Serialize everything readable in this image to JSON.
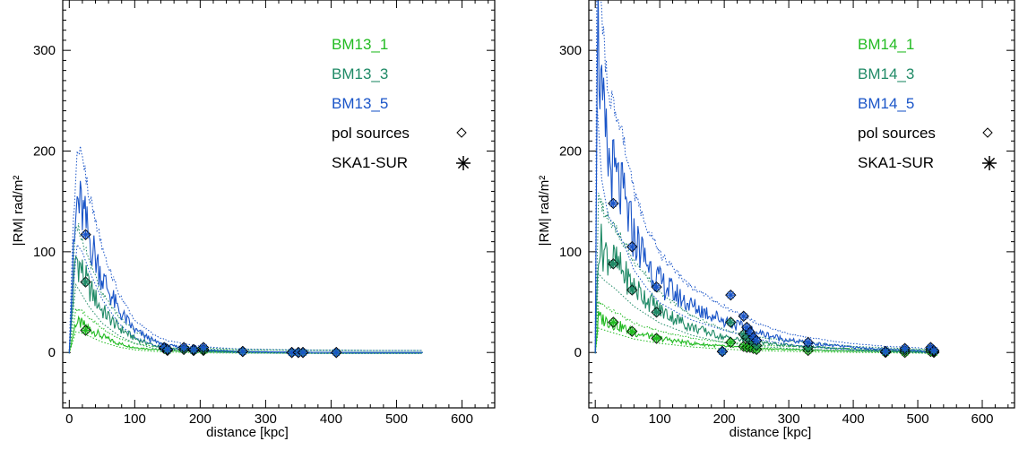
{
  "chart_data": [
    {
      "type": "line",
      "xlabel": "distance [kpc]",
      "ylabel": "|RM| rad/m²",
      "xlim": [
        -10,
        650
      ],
      "ylim": [
        -55,
        350
      ],
      "xticks": [
        "0",
        "100",
        "200",
        "300",
        "400",
        "500",
        "600"
      ],
      "yticks": [
        "0",
        "100",
        "200",
        "300"
      ],
      "legend": [
        "BM13_1",
        "BM13_3",
        "BM13_5",
        "pol sources",
        "SKA1-SUR"
      ],
      "legend_position": "top-right",
      "grid": false,
      "series": [
        {
          "name": "BM13_1",
          "color": "#22bb22",
          "x": [
            0,
            10,
            20,
            30,
            50,
            75,
            100,
            130,
            150,
            200,
            260,
            350,
            450,
            540
          ],
          "y": [
            0,
            30,
            28,
            24,
            16,
            9,
            5,
            3,
            2,
            1,
            0.5,
            0.2,
            0,
            0
          ]
        },
        {
          "name": "BM13_3",
          "color": "#1f8a66",
          "x": [
            0,
            10,
            20,
            30,
            50,
            75,
            100,
            130,
            150,
            200,
            260,
            350,
            450,
            540
          ],
          "y": [
            0,
            95,
            80,
            65,
            42,
            25,
            14,
            7,
            4,
            2,
            1,
            0.3,
            0,
            0
          ]
        },
        {
          "name": "BM13_5",
          "color": "#1a55c8",
          "x": [
            0,
            5,
            12,
            20,
            30,
            50,
            75,
            100,
            130,
            150,
            200,
            260,
            350,
            450,
            540
          ],
          "y": [
            0,
            80,
            150,
            140,
            115,
            75,
            42,
            22,
            11,
            7,
            3,
            1,
            0.3,
            0,
            0
          ]
        }
      ],
      "pol_sources": {
        "x": [
          25,
          145,
          150,
          175,
          190,
          205,
          265,
          340,
          350,
          357,
          408
        ],
        "BM13_1": [
          22,
          4,
          2,
          3,
          2,
          2,
          1,
          0,
          0,
          0,
          0
        ],
        "BM13_3": [
          70,
          4,
          3,
          3,
          2,
          3,
          1,
          0,
          0,
          0,
          0
        ],
        "BM13_5": [
          117,
          5,
          3,
          5,
          3,
          5,
          1,
          0,
          0,
          0,
          0
        ]
      }
    },
    {
      "type": "line",
      "xlabel": "distance [kpc]",
      "ylabel": "|RM| rad/m²",
      "xlim": [
        -10,
        650
      ],
      "ylim": [
        -55,
        350
      ],
      "xticks": [
        "0",
        "100",
        "200",
        "300",
        "400",
        "500",
        "600"
      ],
      "yticks": [
        "0",
        "100",
        "200",
        "300"
      ],
      "legend": [
        "BM14_1",
        "BM14_3",
        "BM14_5",
        "pol sources",
        "SKA1-SUR"
      ],
      "legend_position": "top-right",
      "grid": false,
      "series": [
        {
          "name": "BM14_1",
          "color": "#22bb22",
          "x": [
            0,
            5,
            15,
            30,
            60,
            100,
            150,
            200,
            250,
            300,
            350,
            400,
            450,
            500,
            530
          ],
          "y": [
            0,
            35,
            32,
            28,
            20,
            14,
            9,
            6,
            4,
            3,
            2,
            1.5,
            1,
            0.5,
            0
          ]
        },
        {
          "name": "BM14_3",
          "color": "#1f8a66",
          "x": [
            0,
            5,
            15,
            30,
            60,
            100,
            150,
            200,
            250,
            300,
            350,
            400,
            450,
            500,
            530
          ],
          "y": [
            0,
            110,
            100,
            90,
            65,
            42,
            25,
            15,
            10,
            7,
            5,
            3,
            2,
            1,
            0
          ]
        },
        {
          "name": "BM14_5",
          "color": "#1a55c8",
          "x": [
            0,
            3,
            10,
            20,
            30,
            45,
            60,
            80,
            100,
            130,
            150,
            200,
            250,
            300,
            350,
            400,
            450,
            500,
            530
          ],
          "y": [
            0,
            340,
            240,
            190,
            175,
            150,
            115,
            90,
            70,
            55,
            46,
            32,
            20,
            12,
            8,
            5,
            3,
            2,
            0
          ]
        }
      ],
      "pol_sources": {
        "x": [
          28,
          57,
          95,
          197,
          210,
          230,
          235,
          240,
          245,
          250,
          330,
          450,
          480,
          520,
          525
        ],
        "BM14_1": [
          30,
          21,
          14,
          1,
          10,
          6,
          5,
          5,
          4,
          3,
          2,
          0,
          0,
          1,
          0
        ],
        "BM14_3": [
          88,
          62,
          40,
          1,
          30,
          18,
          15,
          12,
          10,
          7,
          5,
          1,
          2,
          3,
          1
        ],
        "BM14_5": [
          148,
          105,
          65,
          1,
          57,
          36,
          25,
          20,
          15,
          12,
          10,
          1,
          4,
          5,
          2
        ]
      }
    }
  ]
}
